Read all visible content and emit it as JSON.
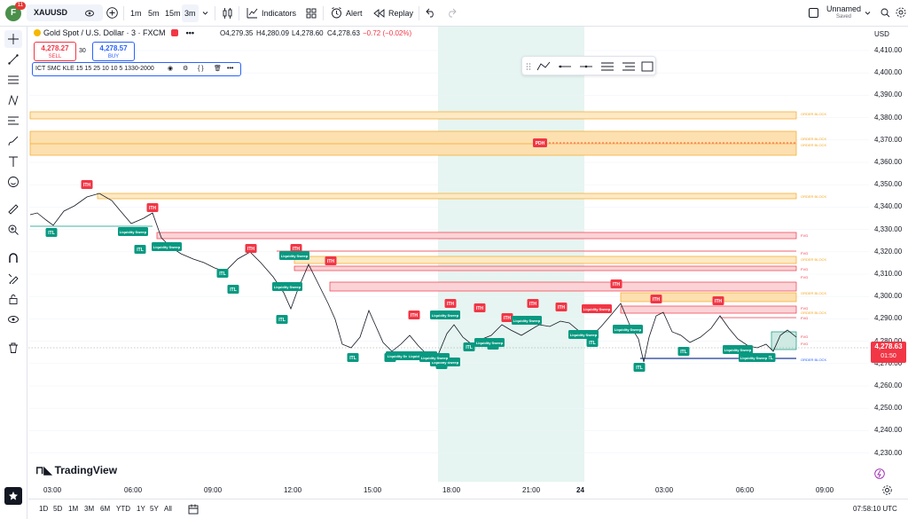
{
  "header": {
    "logo_letter": "F",
    "notification_count": "11",
    "symbol": "XAUUSD",
    "intervals": [
      "1m",
      "5m",
      "15m",
      "3m"
    ],
    "indicators_label": "Indicators",
    "alert_label": "Alert",
    "replay_label": "Replay",
    "layout_name": "Unnamed",
    "layout_status": "Saved"
  },
  "legend": {
    "title": "Gold Spot / U.S. Dollar · 3 · FXCM",
    "open": "O4,279.35",
    "high": "H4,280.09",
    "low": "L4,278.60",
    "close": "C4,278.63",
    "change": "−0.72 (−0.02%)",
    "sell_price": "4,278.27",
    "sell_label": "SELL",
    "spread": "30",
    "buy_price": "4,278.57",
    "buy_label": "BUY",
    "indicator": "ICT SMC KLE 15 15 25 10 10 5 1330-2000"
  },
  "axis": {
    "currency": "USD",
    "price_ticks": [
      "4,410.00",
      "4,400.00",
      "4,390.00",
      "4,380.00",
      "4,370.00",
      "4,360.00",
      "4,350.00",
      "4,340.00",
      "4,330.00",
      "4,320.00",
      "4,310.00",
      "4,300.00",
      "4,290.00",
      "4,280.00",
      "4,270.00",
      "4,260.00",
      "4,250.00",
      "4,240.00",
      "4,230.00"
    ],
    "time_ticks": [
      "03:00",
      "06:00",
      "09:00",
      "12:00",
      "15:00",
      "18:00",
      "21:00",
      "24",
      "03:00",
      "06:00",
      "09:00"
    ],
    "current_price": "4,278.63",
    "countdown": "01:50"
  },
  "annotations": {
    "ith": "ITH",
    "itl": "ITL",
    "liq_sweep": "Liquidity Sweep",
    "order_block": "ORDER BLOCK",
    "fvg": "FVG",
    "pdh": "PDH"
  },
  "bottom": {
    "ranges": [
      "1D",
      "5D",
      "1M",
      "3M",
      "6M",
      "YTD",
      "1Y",
      "5Y",
      "All"
    ],
    "clock": "07:58:10 UTC"
  },
  "brand": {
    "name": "TradingView"
  },
  "colors": {
    "bull": "#089981",
    "bear": "#f23645",
    "order_block": "#f5a623",
    "fvg": "#f23645",
    "session": "#e6f5f1",
    "accent": "#2962ff"
  }
}
